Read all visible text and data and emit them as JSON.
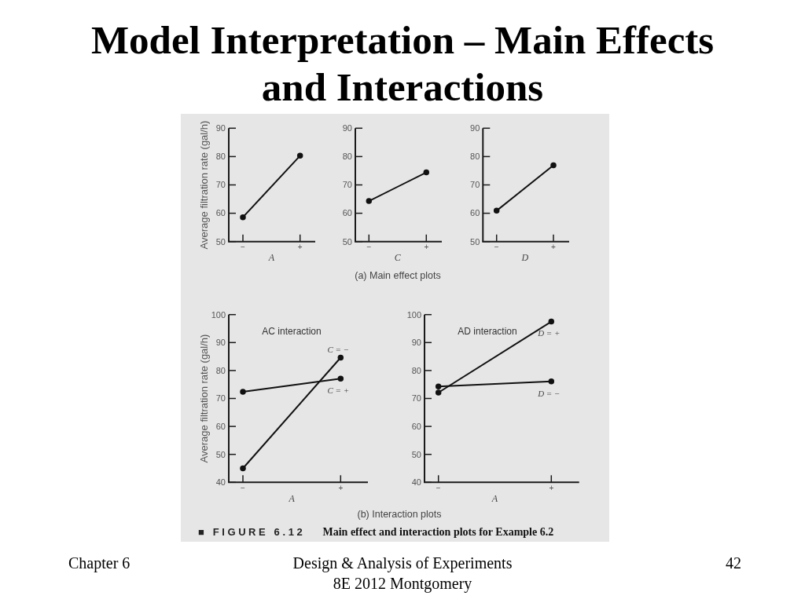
{
  "chart_data": [
    {
      "type": "other",
      "title": "Model Interpretation – Main Effects and Interactions",
      "annotations": [
        "(a) Main effect plots",
        "(b) Interaction plots",
        "■ FIGURE 6.12",
        "Main effect and interaction plots for Example 6.2",
        "Chapter 6",
        "Design & Analysis of Experiments",
        "8E 2012 Montgomery",
        "42"
      ]
    },
    {
      "type": "line",
      "categories": [
        "−",
        "+"
      ],
      "values": [
        58.6,
        80.3
      ],
      "color": "#111111",
      "xlabel": "A",
      "ylabel": "Average filtration rate (gal/h)",
      "ylim": [
        50,
        90
      ],
      "yticks": [
        50,
        60,
        70,
        80,
        90
      ],
      "marker": "circle"
    },
    {
      "type": "line",
      "categories": [
        "−",
        "+"
      ],
      "values": [
        64.3,
        74.4
      ],
      "color": "#111111",
      "xlabel": "C",
      "ylim": [
        50,
        90
      ],
      "yticks": [
        50,
        60,
        70,
        80,
        90
      ],
      "marker": "circle"
    },
    {
      "type": "line",
      "categories": [
        "−",
        "+"
      ],
      "values": [
        60.9,
        76.9
      ],
      "color": "#111111",
      "xlabel": "D",
      "ylim": [
        50,
        90
      ],
      "yticks": [
        50,
        60,
        70,
        80,
        90
      ],
      "marker": "circle"
    },
    {
      "type": "line",
      "title": "AC interaction",
      "categories": [
        "−",
        "+"
      ],
      "series": [
        {
          "name": "C = −",
          "color": "#111111",
          "values": [
            45.0,
            84.6
          ]
        },
        {
          "name": "C = +",
          "color": "#111111",
          "values": [
            72.4,
            77.1
          ]
        }
      ],
      "xlabel": "A",
      "ylabel": "Average filtration rate (gal/h)",
      "ylim": [
        40,
        100
      ],
      "yticks": [
        40,
        50,
        60,
        70,
        80,
        90,
        100
      ],
      "marker": "circle"
    },
    {
      "type": "line",
      "title": "AD interaction",
      "categories": [
        "−",
        "+"
      ],
      "series": [
        {
          "name": "D = +",
          "color": "#111111",
          "values": [
            72.1,
            97.5
          ]
        },
        {
          "name": "D = −",
          "color": "#111111",
          "values": [
            74.3,
            76.1
          ]
        }
      ],
      "xlabel": "A",
      "ylim": [
        40,
        100
      ],
      "yticks": [
        40,
        50,
        60,
        70,
        80,
        90,
        100
      ],
      "marker": "circle"
    }
  ]
}
